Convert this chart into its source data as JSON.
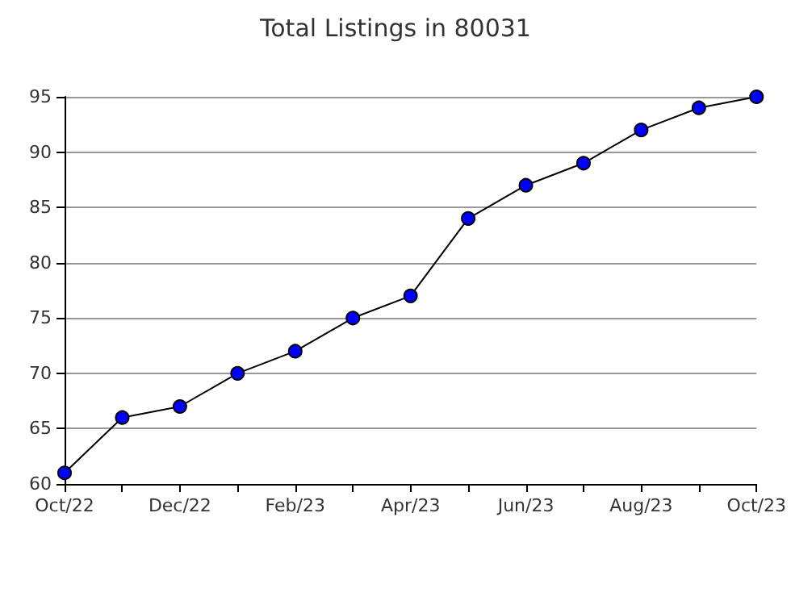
{
  "chart_data": {
    "type": "line",
    "title": "Total Listings in 80031",
    "categories": [
      "Oct/22",
      null,
      "Dec/22",
      null,
      "Feb/23",
      null,
      "Apr/23",
      null,
      "Jun/23",
      null,
      "Aug/23",
      null,
      "Oct/23"
    ],
    "series": [
      {
        "color": "#0000ff",
        "values": [
          61,
          66,
          67,
          70,
          72,
          75,
          77,
          84,
          87,
          89,
          92,
          94,
          95
        ]
      }
    ],
    "ylim": [
      60,
      95
    ],
    "yticks": [
      60,
      65,
      70,
      75,
      80,
      85,
      90,
      95
    ],
    "grid": "y",
    "marker": "circle",
    "line_style": "solid"
  }
}
